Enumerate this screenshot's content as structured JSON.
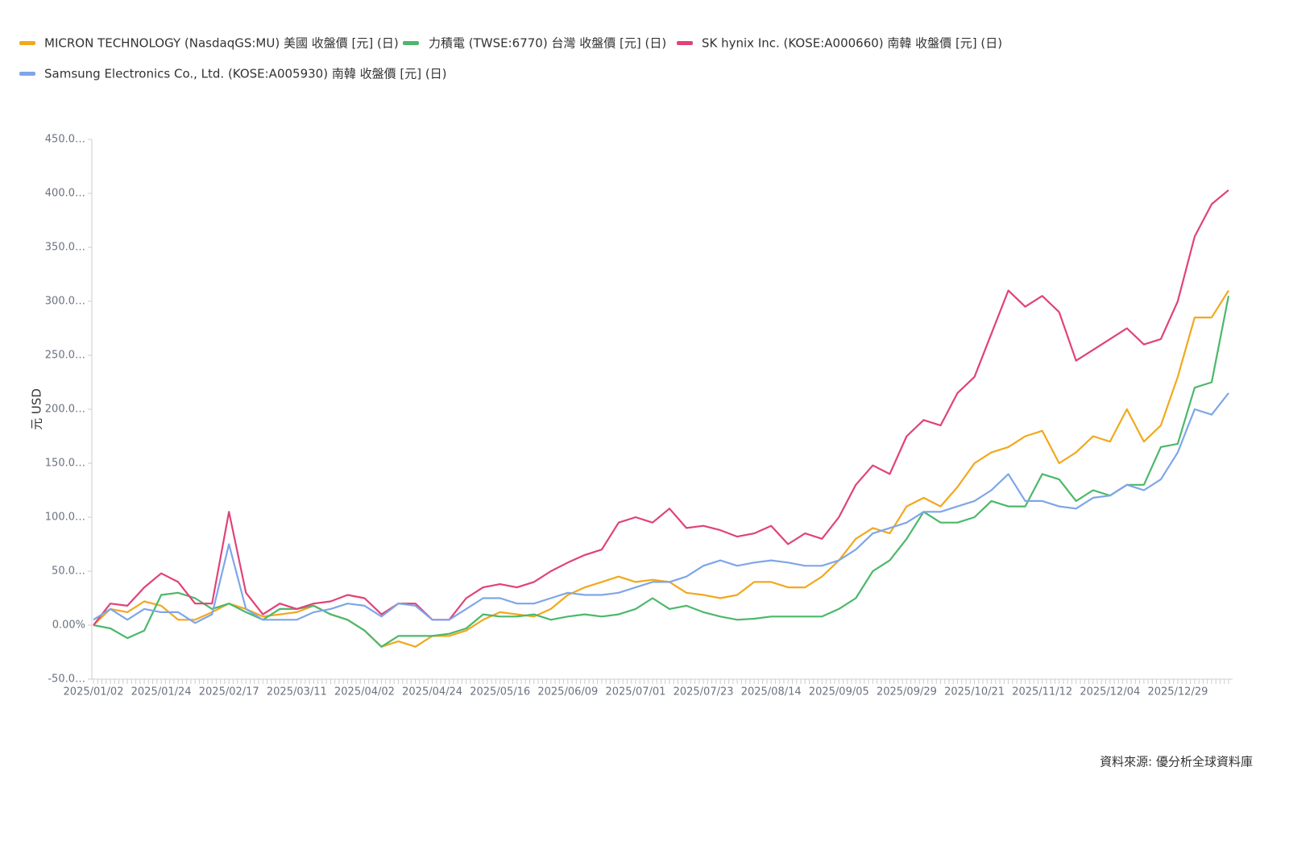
{
  "chart_data": {
    "type": "line",
    "y_label": "元 USD",
    "source": "資料來源: 優分析全球資料庫",
    "categories": [
      "2025/01/02",
      null,
      null,
      null,
      "2025/01/24",
      null,
      null,
      null,
      "2025/02/17",
      null,
      null,
      null,
      "2025/03/11",
      null,
      null,
      null,
      "2025/04/02",
      null,
      null,
      null,
      "2025/04/24",
      null,
      null,
      null,
      "2025/05/16",
      null,
      null,
      null,
      "2025/06/09",
      null,
      null,
      null,
      "2025/07/01",
      null,
      null,
      null,
      "2025/07/23",
      null,
      null,
      null,
      "2025/08/14",
      null,
      null,
      null,
      "2025/09/05",
      null,
      null,
      null,
      "2025/09/29",
      null,
      null,
      null,
      "2025/10/21",
      null,
      null,
      null,
      "2025/11/12",
      null,
      null,
      null,
      "2025/12/04",
      null,
      null,
      null,
      "2025/12/29",
      null,
      null,
      null
    ],
    "series": [
      {
        "name": "MICRON TECHNOLOGY (NasdaqGS:MU) 美國 收盤價 [元] (日)",
        "color": "#f2a81d",
        "values": [
          0,
          15,
          12,
          22,
          18,
          5,
          5,
          12,
          20,
          15,
          8,
          10,
          12,
          18,
          10,
          5,
          -5,
          -20,
          -15,
          -20,
          -10,
          -10,
          -5,
          5,
          12,
          10,
          8,
          15,
          28,
          35,
          40,
          45,
          40,
          42,
          40,
          30,
          28,
          25,
          28,
          40,
          40,
          35,
          35,
          45,
          60,
          80,
          90,
          85,
          110,
          118,
          110,
          128,
          150,
          160,
          165,
          175,
          180,
          150,
          160,
          175,
          170,
          200,
          170,
          185,
          230,
          285,
          285,
          310
        ]
      },
      {
        "name": "力積電 (TWSE:6770) 台灣 收盤價 [元] (日)",
        "color": "#4cb86a",
        "values": [
          0,
          -3,
          -12,
          -5,
          28,
          30,
          25,
          15,
          20,
          12,
          5,
          15,
          15,
          18,
          10,
          5,
          -5,
          -20,
          -10,
          -10,
          -10,
          -8,
          -3,
          10,
          8,
          8,
          10,
          5,
          8,
          10,
          8,
          10,
          15,
          25,
          15,
          18,
          12,
          8,
          5,
          6,
          8,
          8,
          8,
          8,
          15,
          25,
          50,
          60,
          80,
          105,
          95,
          95,
          100,
          115,
          110,
          110,
          140,
          135,
          115,
          125,
          120,
          130,
          130,
          165,
          168,
          220,
          225,
          305
        ]
      },
      {
        "name": "SK hynix Inc. (KOSE:A000660) 南韓 收盤價 [元] (日)",
        "color": "#e0427a",
        "values": [
          0,
          20,
          18,
          35,
          48,
          40,
          20,
          20,
          105,
          30,
          10,
          20,
          15,
          20,
          22,
          28,
          25,
          10,
          20,
          20,
          5,
          5,
          25,
          35,
          38,
          35,
          40,
          50,
          58,
          65,
          70,
          95,
          100,
          95,
          108,
          90,
          92,
          88,
          82,
          85,
          92,
          75,
          85,
          80,
          100,
          130,
          148,
          140,
          175,
          190,
          185,
          215,
          230,
          270,
          310,
          295,
          305,
          290,
          245,
          255,
          265,
          275,
          260,
          265,
          300,
          360,
          390,
          403
        ]
      },
      {
        "name": "Samsung Electronics Co., Ltd. (KOSE:A005930) 南韓 收盤價 [元] (日)",
        "color": "#7ea6e8",
        "values": [
          5,
          15,
          5,
          15,
          12,
          12,
          2,
          10,
          75,
          15,
          5,
          5,
          5,
          12,
          15,
          20,
          18,
          8,
          20,
          18,
          5,
          5,
          15,
          25,
          25,
          20,
          20,
          25,
          30,
          28,
          28,
          30,
          35,
          40,
          40,
          45,
          55,
          60,
          55,
          58,
          60,
          58,
          55,
          55,
          60,
          70,
          85,
          90,
          95,
          105,
          105,
          110,
          115,
          125,
          140,
          115,
          115,
          110,
          108,
          118,
          120,
          130,
          125,
          135,
          160,
          200,
          195,
          215
        ]
      }
    ],
    "ylim": [
      -50,
      450
    ],
    "yticks": [
      {
        "value": -50,
        "label": "-50.0…"
      },
      {
        "value": 0,
        "label": "0.00%"
      },
      {
        "value": 50,
        "label": "50.0…"
      },
      {
        "value": 100,
        "label": "100.0…"
      },
      {
        "value": 150,
        "label": "150.0…"
      },
      {
        "value": 200,
        "label": "200.0…"
      },
      {
        "value": 250,
        "label": "250.0…"
      },
      {
        "value": 300,
        "label": "300.0…"
      },
      {
        "value": 350,
        "label": "350.0…"
      },
      {
        "value": 400,
        "label": "400.0…"
      },
      {
        "value": 450,
        "label": "450.0…"
      }
    ]
  }
}
